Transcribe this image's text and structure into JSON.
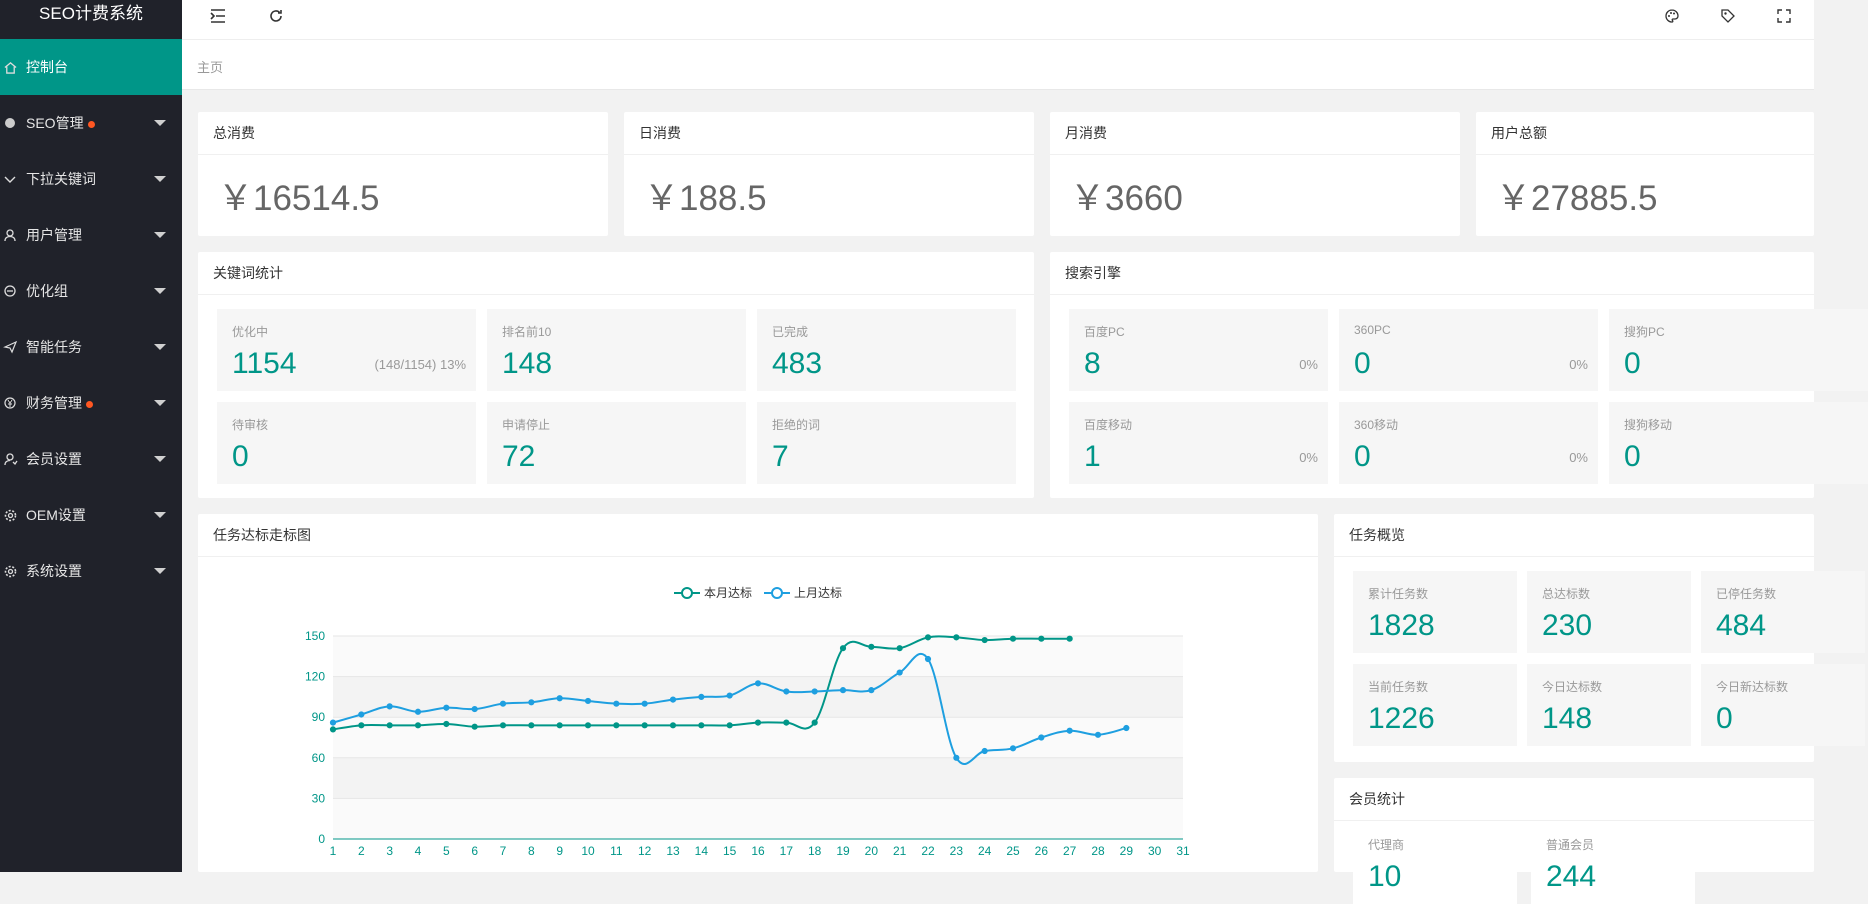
{
  "app": {
    "title": "SEO计费系统"
  },
  "sidebar": {
    "items": [
      {
        "label": "控制台",
        "icon": "home-icon",
        "active": true,
        "dot": false,
        "caret": false
      },
      {
        "label": "SEO管理",
        "icon": "circle-icon",
        "dot": true,
        "caret": true
      },
      {
        "label": "下拉关键词",
        "icon": "chevron-down-icon",
        "dot": false,
        "caret": true
      },
      {
        "label": "用户管理",
        "icon": "user-icon",
        "dot": false,
        "caret": true
      },
      {
        "label": "优化组",
        "icon": "group-icon",
        "dot": false,
        "caret": true
      },
      {
        "label": "智能任务",
        "icon": "send-icon",
        "dot": false,
        "caret": true
      },
      {
        "label": "财务管理",
        "icon": "yen-icon",
        "dot": true,
        "caret": true
      },
      {
        "label": "会员设置",
        "icon": "member-icon",
        "dot": false,
        "caret": true
      },
      {
        "label": "OEM设置",
        "icon": "gear-icon",
        "dot": false,
        "caret": true
      },
      {
        "label": "系统设置",
        "icon": "gear-icon",
        "dot": false,
        "caret": true
      }
    ]
  },
  "header": {
    "icons": [
      "menu-fold-icon",
      "refresh-icon",
      "palette-icon",
      "tag-icon",
      "fullscreen-icon"
    ]
  },
  "breadcrumb": {
    "home": "主页"
  },
  "summary": [
    {
      "title": "总消费",
      "value": "￥16514.5"
    },
    {
      "title": "日消费",
      "value": "￥188.5"
    },
    {
      "title": "月消费",
      "value": "￥3660"
    },
    {
      "title": "用户总额",
      "value": "￥27885.5"
    }
  ],
  "keywords": {
    "title": "关键词统计",
    "stats": [
      {
        "label": "优化中",
        "value": "1154",
        "note": "(148/1154) 13%"
      },
      {
        "label": "排名前10",
        "value": "148",
        "note": ""
      },
      {
        "label": "已完成",
        "value": "483",
        "note": ""
      },
      {
        "label": "待审核",
        "value": "0",
        "note": ""
      },
      {
        "label": "申请停止",
        "value": "72",
        "note": ""
      },
      {
        "label": "拒绝的词",
        "value": "7",
        "note": ""
      }
    ]
  },
  "engines": {
    "title": "搜索引擎",
    "stats": [
      {
        "label": "百度PC",
        "value": "8",
        "note": "0%"
      },
      {
        "label": "360PC",
        "value": "0",
        "note": "0%"
      },
      {
        "label": "搜狗PC",
        "value": "0",
        "note": ""
      },
      {
        "label": "百度移动",
        "value": "1",
        "note": "0%"
      },
      {
        "label": "360移动",
        "value": "0",
        "note": "0%"
      },
      {
        "label": "搜狗移动",
        "value": "0",
        "note": ""
      }
    ]
  },
  "chart_card": {
    "title": "任务达标走标图"
  },
  "chart_data": {
    "type": "line",
    "title": "",
    "x": [
      1,
      2,
      3,
      4,
      5,
      6,
      7,
      8,
      9,
      10,
      11,
      12,
      13,
      14,
      15,
      16,
      17,
      18,
      19,
      20,
      21,
      22,
      23,
      24,
      25,
      26,
      27,
      28,
      29,
      30,
      31
    ],
    "ylim": [
      0,
      150
    ],
    "yticks": [
      0,
      30,
      60,
      90,
      120,
      150
    ],
    "grid": true,
    "legend": "top-center",
    "series": [
      {
        "name": "本月达标",
        "color": "#009688",
        "values": [
          81,
          84,
          84,
          84,
          85,
          83,
          84,
          84,
          84,
          84,
          84,
          84,
          84,
          84,
          84,
          86,
          86,
          86,
          141,
          142,
          141,
          149,
          149,
          147,
          148,
          148,
          148,
          null,
          null,
          null,
          null
        ]
      },
      {
        "name": "上月达标",
        "color": "#1e9fe0",
        "values": [
          86,
          92,
          98,
          94,
          97,
          96,
          100,
          101,
          104,
          102,
          100,
          100,
          103,
          105,
          106,
          115,
          109,
          109,
          110,
          110,
          123,
          133,
          60,
          65,
          67,
          75,
          80,
          77,
          82,
          null,
          null
        ]
      }
    ]
  },
  "tasks": {
    "title": "任务概览",
    "stats": [
      {
        "label": "累计任务数",
        "value": "1828"
      },
      {
        "label": "总达标数",
        "value": "230"
      },
      {
        "label": "已停任务数",
        "value": "484"
      },
      {
        "label": "当前任务数",
        "value": "1226"
      },
      {
        "label": "今日达标数",
        "value": "148"
      },
      {
        "label": "今日新达标数",
        "value": "0"
      }
    ]
  },
  "members": {
    "title": "会员统计",
    "stats": [
      {
        "label": "代理商",
        "value": "10"
      },
      {
        "label": "普通会员",
        "value": "244"
      }
    ]
  }
}
